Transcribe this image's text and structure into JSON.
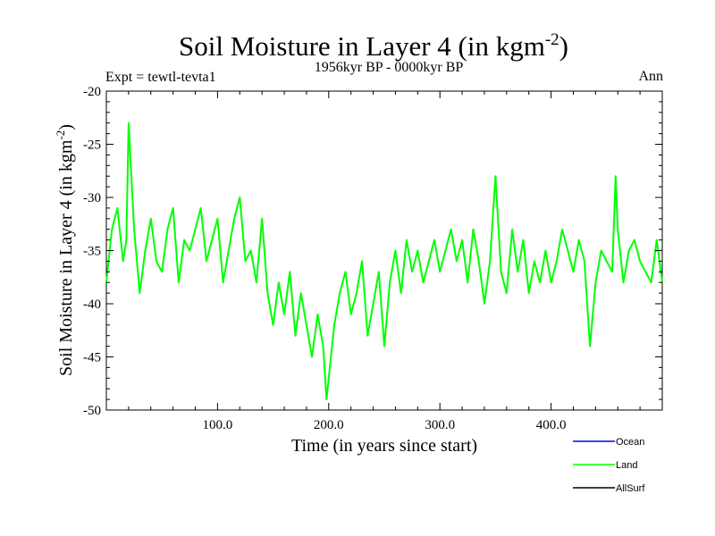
{
  "chart_data": {
    "type": "line",
    "title": "Soil Moisture in Layer 4 (in kgm",
    "title_sup": "-2",
    "title_close": ")",
    "subtitle": "1956kyr BP - 0000kyr BP",
    "experiment": "Expt = tewtl-tevta1",
    "season": "Ann",
    "xlabel": "Time (in years since start)",
    "ylabel": "Soil Moisture in Layer 4 (in kgm",
    "ylabel_sup": "-2",
    "ylabel_close": ")",
    "xlim": [
      0,
      500
    ],
    "ylim": [
      -50,
      -20
    ],
    "xticks": [
      100,
      200,
      300,
      400
    ],
    "xtick_labels": [
      "100.0",
      "200.0",
      "300.0",
      "400.0"
    ],
    "yticks": [
      -20,
      -25,
      -30,
      -35,
      -40,
      -45,
      -50
    ],
    "ytick_labels": [
      "-20",
      "-25",
      "-30",
      "-35",
      "-40",
      "-45",
      "-50"
    ],
    "legend": [
      {
        "name": "Ocean",
        "color": "#0000ff"
      },
      {
        "name": "Land",
        "color": "#00ff00"
      },
      {
        "name": "AllSurf",
        "color": "#000000"
      }
    ],
    "series": [
      {
        "name": "Land",
        "color": "#00ff00",
        "x": [
          0,
          5,
          10,
          15,
          18,
          20,
          25,
          30,
          35,
          40,
          45,
          50,
          55,
          60,
          65,
          70,
          75,
          80,
          85,
          90,
          95,
          100,
          105,
          110,
          115,
          120,
          125,
          130,
          135,
          140,
          145,
          150,
          155,
          160,
          165,
          170,
          175,
          180,
          185,
          190,
          195,
          198,
          200,
          205,
          210,
          215,
          220,
          225,
          230,
          235,
          240,
          245,
          250,
          255,
          260,
          265,
          270,
          275,
          280,
          285,
          290,
          295,
          300,
          305,
          310,
          315,
          320,
          325,
          330,
          335,
          340,
          345,
          350,
          355,
          360,
          365,
          370,
          375,
          380,
          385,
          390,
          395,
          400,
          405,
          410,
          415,
          420,
          425,
          430,
          435,
          440,
          445,
          450,
          455,
          458,
          460,
          465,
          470,
          475,
          480,
          485,
          490,
          495,
          500
        ],
        "values": [
          -38,
          -33,
          -31,
          -36,
          -34,
          -23,
          -33,
          -39,
          -35,
          -32,
          -36,
          -37,
          -33,
          -31,
          -38,
          -34,
          -35,
          -33,
          -31,
          -36,
          -34,
          -32,
          -38,
          -35,
          -32,
          -30,
          -36,
          -35,
          -38,
          -32,
          -39,
          -42,
          -38,
          -41,
          -37,
          -43,
          -39,
          -42,
          -45,
          -41,
          -44,
          -49,
          -47,
          -42,
          -39,
          -37,
          -41,
          -39,
          -36,
          -43,
          -40,
          -37,
          -44,
          -38,
          -35,
          -39,
          -34,
          -37,
          -35,
          -38,
          -36,
          -34,
          -37,
          -35,
          -33,
          -36,
          -34,
          -38,
          -33,
          -36,
          -40,
          -36,
          -28,
          -37,
          -39,
          -33,
          -37,
          -34,
          -39,
          -36,
          -38,
          -35,
          -38,
          -36,
          -33,
          -35,
          -37,
          -34,
          -36,
          -44,
          -38,
          -35,
          -36,
          -37,
          -28,
          -33,
          -38,
          -35,
          -34,
          -36,
          -37,
          -38,
          -34,
          -38
        ]
      }
    ]
  }
}
